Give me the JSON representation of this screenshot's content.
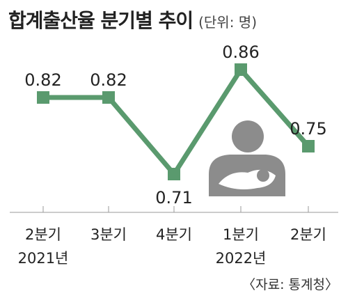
{
  "header": {
    "title": "합계출산율 분기별 추이",
    "unit": "(단위: 명)"
  },
  "source": "〈자료: 통계청〉",
  "colors": {
    "line": "#5a9a6e",
    "marker": "#5a9a6e",
    "icon": "#8c8c8c",
    "axis": "#999999"
  },
  "chart_data": {
    "type": "line",
    "title": "합계출산율 분기별 추이",
    "unit": "(단위: 명)",
    "categories": [
      "2분기",
      "3분기",
      "4분기",
      "1분기",
      "2분기"
    ],
    "year_labels": [
      "2021년",
      "",
      "",
      "2022년",
      ""
    ],
    "series": [
      {
        "values": [
          0.82,
          0.82,
          0.71,
          0.86,
          0.75
        ]
      }
    ],
    "data_labels": [
      "0.82",
      "0.82",
      "0.71",
      "0.86",
      "0.75"
    ],
    "ylim": [
      0.65,
      0.9
    ],
    "grid": false,
    "legend": "none"
  }
}
